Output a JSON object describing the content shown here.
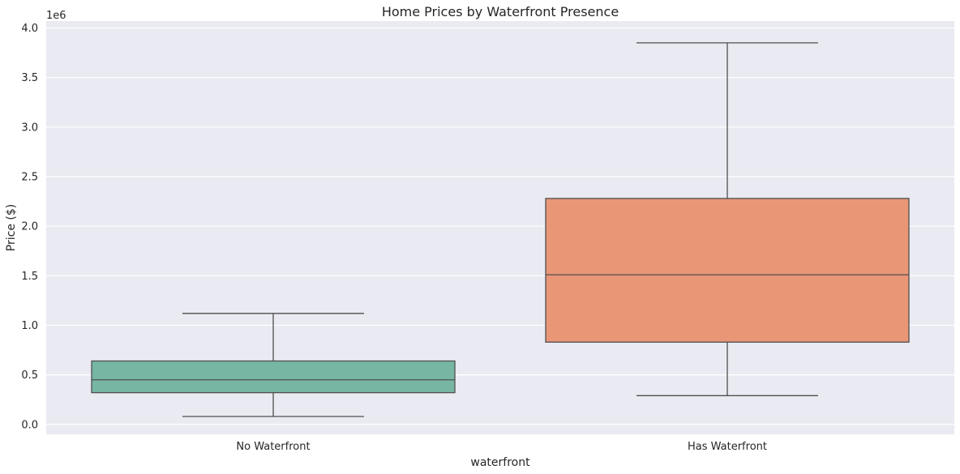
{
  "chart_data": {
    "type": "box",
    "title": "Home Prices by Waterfront Presence",
    "xlabel": "waterfront",
    "ylabel": "Price ($)",
    "y_offset_label": "1e6",
    "categories": [
      "No Waterfront",
      "Has Waterfront"
    ],
    "y_ticks": [
      0.0,
      0.5,
      1.0,
      1.5,
      2.0,
      2.5,
      3.0,
      3.5,
      4.0
    ],
    "y_tick_labels": [
      "0.0",
      "0.5",
      "1.0",
      "1.5",
      "2.0",
      "2.5",
      "3.0",
      "3.5",
      "4.0"
    ],
    "ylim": [
      -0.1,
      4.07
    ],
    "y_multiplier": 1000000,
    "grid": true,
    "legend": "none",
    "boxes": [
      {
        "category": "No Waterfront",
        "whisker_low": 0.08,
        "q1": 0.32,
        "median": 0.45,
        "q3": 0.64,
        "whisker_high": 1.12,
        "color": "#76b6a3"
      },
      {
        "category": "Has Waterfront",
        "whisker_low": 0.29,
        "q1": 0.83,
        "median": 1.51,
        "q3": 2.28,
        "whisker_high": 3.85,
        "color": "#e99677"
      }
    ]
  },
  "colors": {
    "background": "#eaeaf2",
    "grid": "#ffffff",
    "line": "#4f4f4f",
    "text": "#262626"
  }
}
